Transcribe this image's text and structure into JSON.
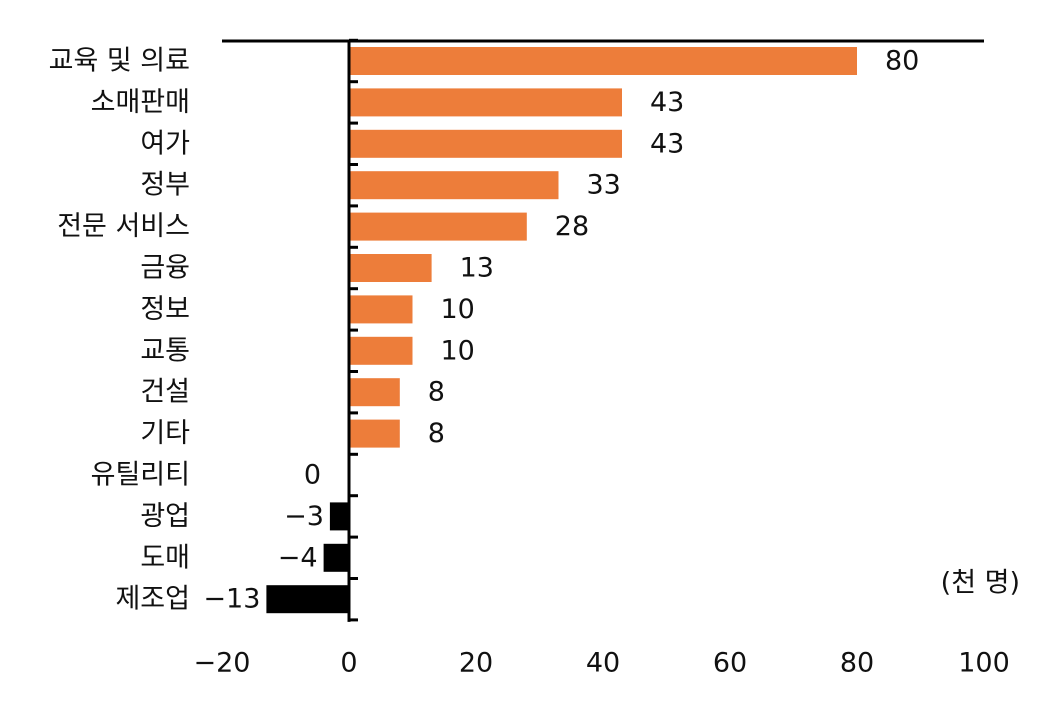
{
  "chart_data": {
    "type": "bar",
    "orientation": "horizontal",
    "title": "",
    "unit": "(천 명)",
    "categories": [
      "교육 및 의료",
      "소매판매",
      "여가",
      "정부",
      "전문 서비스",
      "금융",
      "정보",
      "교통",
      "건설",
      "기타",
      "유틸리티",
      "광업",
      "도매",
      "제조업"
    ],
    "values": [
      80,
      43,
      43,
      33,
      28,
      13,
      10,
      10,
      8,
      8,
      0,
      -3,
      -4,
      -13
    ],
    "value_labels": [
      "80",
      "43",
      "43",
      "33",
      "28",
      "13",
      "10",
      "10",
      "8",
      "8",
      "0",
      "−3",
      "−4",
      "−13"
    ],
    "xlim": [
      -20,
      100
    ],
    "xticks": [
      -20,
      0,
      20,
      40,
      60,
      80,
      100
    ],
    "xtick_labels": [
      "−20",
      "0",
      "20",
      "40",
      "60",
      "80",
      "100"
    ],
    "grid": false,
    "legend": "none",
    "colors": {
      "positive": "#ED7D3A",
      "negative": "#000000",
      "axis": "#000000"
    }
  }
}
